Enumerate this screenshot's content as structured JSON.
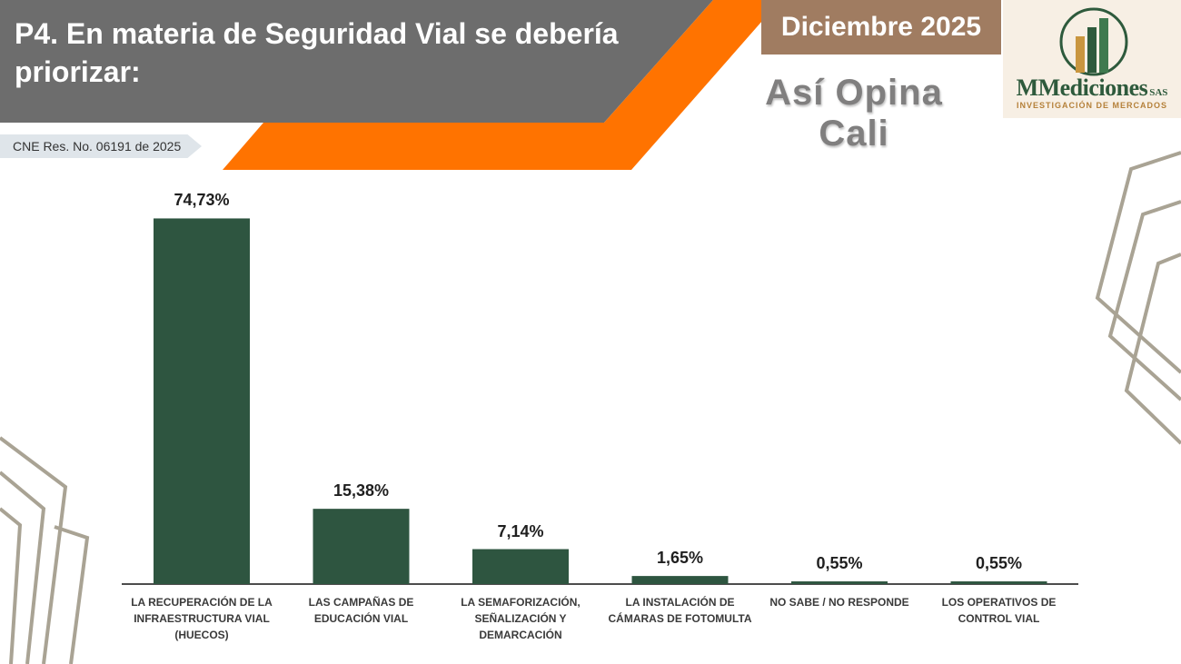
{
  "header": {
    "question": "P4. En materia de Seguridad Vial se debería priorizar:",
    "period": "Diciembre 2025",
    "subtitle": "Así Opina Cali",
    "cne": "CNE Res. No. 06191 de 2025"
  },
  "logo": {
    "name": "MMediciones",
    "suffix": "SAS",
    "tagline": "INVESTIGACIÓN DE MERCADOS"
  },
  "colors": {
    "bar": "#2e5540",
    "header_gray": "#6d6d6d",
    "accent_orange": "#ff7300",
    "month_bg": "#a07c61",
    "decor_lines": "#a9a394"
  },
  "chart_data": {
    "type": "bar",
    "title": "P4. En materia de Seguridad Vial se debería priorizar:",
    "categories": [
      "LA RECUPERACIÓN DE LA INFRAESTRUCTURA VIAL (HUECOS)",
      "LAS CAMPAÑAS DE EDUCACIÓN VIAL",
      "LA SEMAFORIZACIÓN, SEÑALIZACIÓN Y DEMARCACIÓN",
      "LA INSTALACIÓN DE CÁMARAS DE FOTOMULTA",
      "NO SABE / NO RESPONDE",
      "LOS OPERATIVOS DE CONTROL VIAL"
    ],
    "values": [
      74.73,
      15.38,
      7.14,
      1.65,
      0.55,
      0.55
    ],
    "value_labels": [
      "74,73%",
      "15,38%",
      "7,14%",
      "1,65%",
      "0,55%",
      "0,55%"
    ],
    "ylim": [
      0,
      75
    ],
    "xlabel": "",
    "ylabel": "",
    "grid": false
  }
}
